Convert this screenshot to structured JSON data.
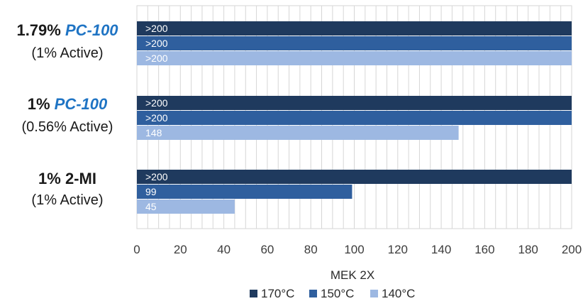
{
  "colors": {
    "grid": "#d6d6d6",
    "brand_text": "#1f74c4"
  },
  "chart_data": {
    "type": "bar",
    "orientation": "horizontal",
    "categories": [
      {
        "line1": "1.79% ",
        "brand": "PC-100",
        "line2": "(1% Active)"
      },
      {
        "line1": "1% ",
        "brand": "PC-100",
        "line2": "(0.56% Active)"
      },
      {
        "line1": "1% 2-MI",
        "brand": "",
        "line2": "(1% Active)"
      }
    ],
    "series": [
      {
        "name": "170°C",
        "color": "#1f3a5e",
        "values": [
          200,
          200,
          200
        ],
        "labels": [
          ">200",
          ">200",
          ">200"
        ]
      },
      {
        "name": "150°C",
        "color": "#2f5f9e",
        "values": [
          200,
          200,
          99
        ],
        "labels": [
          ">200",
          ">200",
          "99"
        ]
      },
      {
        "name": "140°C",
        "color": "#9db8e2",
        "values": [
          200,
          148,
          45
        ],
        "labels": [
          ">200",
          "148",
          "45"
        ]
      }
    ],
    "xlabel": "MEK 2X",
    "xlim": [
      0,
      200
    ],
    "xticks": [
      0,
      20,
      40,
      60,
      80,
      100,
      120,
      140,
      160,
      180,
      200
    ],
    "grid": true,
    "legend_position": "bottom"
  }
}
